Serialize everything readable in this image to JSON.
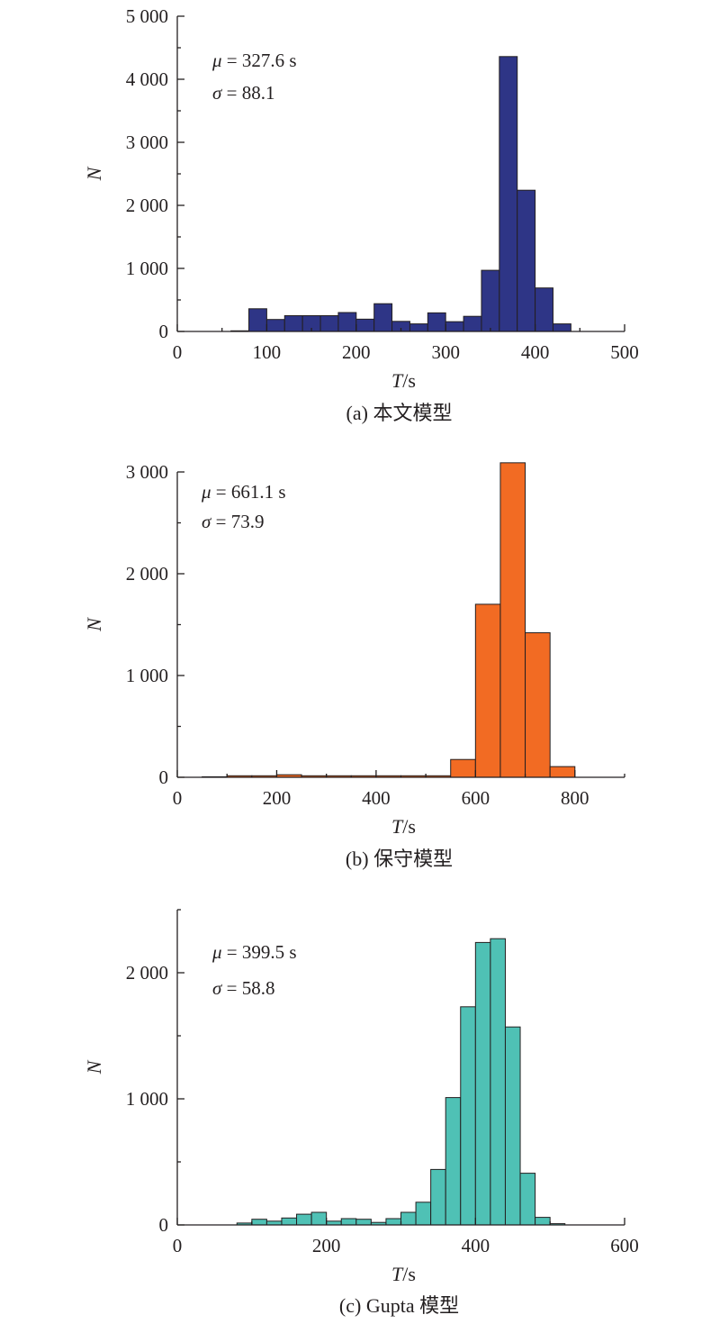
{
  "chart_data": [
    {
      "type": "bar",
      "caption": "(a) 本文模型",
      "xlabel": "T/s",
      "ylabel": "N",
      "xlim": [
        0,
        500
      ],
      "ylim": [
        0,
        5000
      ],
      "xticks": [
        0,
        100,
        200,
        300,
        400,
        500
      ],
      "xtick_labels": [
        "0",
        "100",
        "200",
        "300",
        "400",
        "500"
      ],
      "yticks": [
        0,
        1000,
        2000,
        3000,
        4000,
        5000
      ],
      "ytick_labels": [
        "0",
        "1 000",
        "2 000",
        "3 000",
        "4 000",
        "5 000"
      ],
      "annotations": [
        {
          "symbol": "μ",
          "text": " = 327.6 s"
        },
        {
          "symbol": "σ",
          "text": " = 88.1"
        }
      ],
      "color": "#2e3586",
      "bin_width": 20,
      "bins": [
        {
          "x": 60,
          "y": 10
        },
        {
          "x": 80,
          "y": 360
        },
        {
          "x": 100,
          "y": 190
        },
        {
          "x": 120,
          "y": 250
        },
        {
          "x": 140,
          "y": 250
        },
        {
          "x": 160,
          "y": 250
        },
        {
          "x": 180,
          "y": 300
        },
        {
          "x": 200,
          "y": 195
        },
        {
          "x": 220,
          "y": 440
        },
        {
          "x": 240,
          "y": 160
        },
        {
          "x": 260,
          "y": 120
        },
        {
          "x": 280,
          "y": 295
        },
        {
          "x": 300,
          "y": 155
        },
        {
          "x": 320,
          "y": 240
        },
        {
          "x": 340,
          "y": 970
        },
        {
          "x": 360,
          "y": 4360
        },
        {
          "x": 380,
          "y": 2240
        },
        {
          "x": 400,
          "y": 690
        },
        {
          "x": 420,
          "y": 120
        }
      ]
    },
    {
      "type": "bar",
      "caption": "(b) 保守模型",
      "xlabel": "T/s",
      "ylabel": "N",
      "xlim": [
        0,
        900
      ],
      "ylim": [
        0,
        3000
      ],
      "xticks": [
        0,
        200,
        400,
        600,
        800
      ],
      "xtick_labels": [
        "0",
        "200",
        "400",
        "600",
        "800"
      ],
      "yticks": [
        0,
        1000,
        2000,
        3000
      ],
      "ytick_labels": [
        "0",
        "1 000",
        "2 000",
        "3 000"
      ],
      "annotations": [
        {
          "symbol": "μ",
          "text": " = 661.1 s"
        },
        {
          "symbol": "σ",
          "text": " = 73.9"
        }
      ],
      "color": "#f26b23",
      "bin_width": 50,
      "bins": [
        {
          "x": 50,
          "y": 5
        },
        {
          "x": 100,
          "y": 15
        },
        {
          "x": 150,
          "y": 15
        },
        {
          "x": 200,
          "y": 25
        },
        {
          "x": 250,
          "y": 15
        },
        {
          "x": 300,
          "y": 15
        },
        {
          "x": 350,
          "y": 15
        },
        {
          "x": 400,
          "y": 15
        },
        {
          "x": 450,
          "y": 15
        },
        {
          "x": 500,
          "y": 15
        },
        {
          "x": 550,
          "y": 175
        },
        {
          "x": 600,
          "y": 1700
        },
        {
          "x": 650,
          "y": 3090
        },
        {
          "x": 700,
          "y": 1420
        },
        {
          "x": 750,
          "y": 105
        }
      ]
    },
    {
      "type": "bar",
      "caption": "(c) Gupta 模型",
      "xlabel": "T/s",
      "ylabel": "N",
      "xlim": [
        0,
        600
      ],
      "ylim": [
        0,
        2500
      ],
      "xticks": [
        0,
        200,
        400,
        600
      ],
      "xtick_labels": [
        "0",
        "200",
        "400",
        "600"
      ],
      "yticks": [
        0,
        1000,
        2000
      ],
      "ytick_labels": [
        "0",
        "1 000",
        "2 000"
      ],
      "annotations": [
        {
          "symbol": "μ",
          "text": " = 399.5 s"
        },
        {
          "symbol": "σ",
          "text": " = 58.8"
        }
      ],
      "color": "#4fc1b5",
      "bin_width": 20,
      "bins": [
        {
          "x": 80,
          "y": 15
        },
        {
          "x": 100,
          "y": 45
        },
        {
          "x": 120,
          "y": 30
        },
        {
          "x": 140,
          "y": 55
        },
        {
          "x": 160,
          "y": 85
        },
        {
          "x": 180,
          "y": 100
        },
        {
          "x": 200,
          "y": 30
        },
        {
          "x": 220,
          "y": 50
        },
        {
          "x": 240,
          "y": 45
        },
        {
          "x": 260,
          "y": 20
        },
        {
          "x": 280,
          "y": 50
        },
        {
          "x": 300,
          "y": 100
        },
        {
          "x": 320,
          "y": 180
        },
        {
          "x": 340,
          "y": 440
        },
        {
          "x": 360,
          "y": 1010
        },
        {
          "x": 380,
          "y": 1730
        },
        {
          "x": 400,
          "y": 2240
        },
        {
          "x": 420,
          "y": 2270
        },
        {
          "x": 440,
          "y": 1570
        },
        {
          "x": 460,
          "y": 410
        },
        {
          "x": 480,
          "y": 60
        },
        {
          "x": 500,
          "y": 10
        }
      ]
    }
  ]
}
